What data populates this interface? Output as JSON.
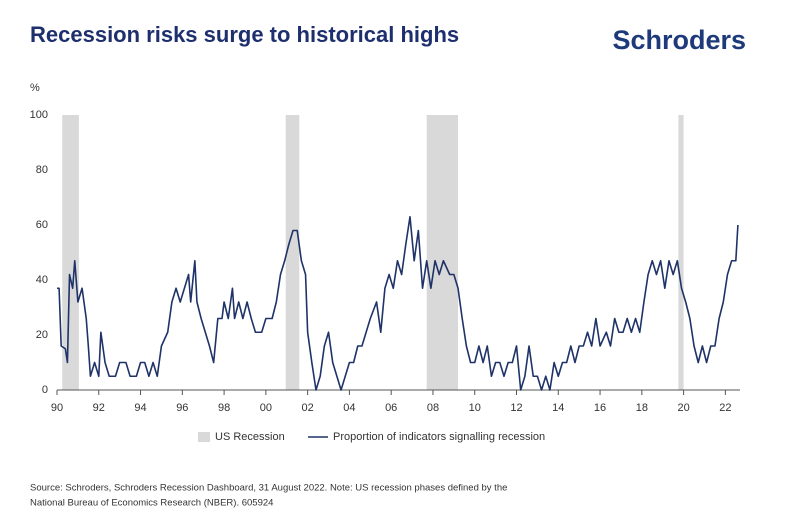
{
  "header": {
    "title": "Recession risks surge to historical highs",
    "brand": "Schroders"
  },
  "chart_data": {
    "type": "line",
    "y_label": "%",
    "x": [
      1990.0,
      1990.1,
      1990.2,
      1990.4,
      1990.5,
      1990.6,
      1990.75,
      1990.85,
      1991.0,
      1991.2,
      1991.4,
      1991.5,
      1991.6,
      1991.8,
      1992.0,
      1992.1,
      1992.3,
      1992.5,
      1992.8,
      1993.0,
      1993.3,
      1993.5,
      1993.8,
      1994.0,
      1994.2,
      1994.4,
      1994.6,
      1994.8,
      1995.0,
      1995.3,
      1995.5,
      1995.7,
      1995.9,
      1996.1,
      1996.3,
      1996.4,
      1996.6,
      1996.7,
      1996.9,
      1997.1,
      1997.3,
      1997.5,
      1997.7,
      1997.9,
      1998.0,
      1998.2,
      1998.4,
      1998.5,
      1998.7,
      1998.9,
      1999.1,
      1999.3,
      1999.5,
      1999.8,
      2000.0,
      2000.3,
      2000.5,
      2000.7,
      2000.9,
      2001.1,
      2001.3,
      2001.5,
      2001.7,
      2001.9,
      2002.0,
      2002.2,
      2002.4,
      2002.6,
      2002.8,
      2003.0,
      2003.2,
      2003.4,
      2003.6,
      2003.8,
      2004.0,
      2004.2,
      2004.4,
      2004.6,
      2004.8,
      2005.0,
      2005.3,
      2005.5,
      2005.7,
      2005.9,
      2006.1,
      2006.3,
      2006.5,
      2006.7,
      2006.9,
      2007.1,
      2007.3,
      2007.5,
      2007.7,
      2007.9,
      2008.1,
      2008.3,
      2008.5,
      2008.8,
      2009.0,
      2009.2,
      2009.4,
      2009.6,
      2009.8,
      2010.0,
      2010.2,
      2010.4,
      2010.6,
      2010.8,
      2011.0,
      2011.2,
      2011.4,
      2011.6,
      2011.8,
      2012.0,
      2012.2,
      2012.4,
      2012.6,
      2012.8,
      2013.0,
      2013.2,
      2013.4,
      2013.6,
      2013.8,
      2014.0,
      2014.2,
      2014.4,
      2014.6,
      2014.8,
      2015.0,
      2015.2,
      2015.4,
      2015.6,
      2015.8,
      2016.0,
      2016.3,
      2016.5,
      2016.7,
      2016.9,
      2017.1,
      2017.3,
      2017.5,
      2017.7,
      2017.9,
      2018.1,
      2018.3,
      2018.5,
      2018.7,
      2018.9,
      2019.1,
      2019.3,
      2019.5,
      2019.7,
      2019.9,
      2020.1,
      2020.3,
      2020.5,
      2020.7,
      2020.9,
      2021.1,
      2021.3,
      2021.5,
      2021.7,
      2021.9,
      2022.1,
      2022.3,
      2022.5,
      2022.6
    ],
    "series": [
      {
        "name": "Proportion of indicators signalling recession",
        "color": "#1f3368",
        "values": [
          37,
          37,
          16,
          15,
          10,
          42,
          37,
          47,
          32,
          37,
          26,
          16,
          5,
          10,
          5,
          21,
          10,
          5,
          5,
          10,
          10,
          5,
          5,
          10,
          10,
          5,
          10,
          5,
          16,
          21,
          32,
          37,
          32,
          37,
          42,
          32,
          47,
          32,
          26,
          21,
          16,
          10,
          26,
          26,
          32,
          26,
          37,
          26,
          32,
          26,
          32,
          26,
          21,
          21,
          26,
          26,
          32,
          42,
          47,
          53,
          58,
          58,
          47,
          42,
          21,
          10,
          0,
          5,
          16,
          21,
          10,
          5,
          0,
          5,
          10,
          10,
          16,
          16,
          21,
          26,
          32,
          21,
          37,
          42,
          37,
          47,
          42,
          53,
          63,
          47,
          58,
          37,
          47,
          37,
          47,
          42,
          47,
          42,
          42,
          37,
          26,
          16,
          10,
          10,
          16,
          10,
          16,
          5,
          10,
          10,
          5,
          10,
          10,
          16,
          0,
          5,
          16,
          5,
          5,
          0,
          5,
          0,
          10,
          5,
          10,
          10,
          16,
          10,
          16,
          16,
          21,
          16,
          26,
          16,
          21,
          16,
          26,
          21,
          21,
          26,
          21,
          26,
          21,
          32,
          42,
          47,
          42,
          47,
          37,
          47,
          42,
          47,
          37,
          32,
          26,
          16,
          10,
          16,
          10,
          16,
          16,
          26,
          32,
          42,
          47,
          47,
          60
        ]
      }
    ],
    "recessions": {
      "name": "US Recession",
      "color": "#d9d9d9",
      "periods": [
        [
          1990.25,
          1991.05
        ],
        [
          2000.95,
          2001.6
        ],
        [
          2007.7,
          2009.2
        ],
        [
          2019.75,
          2020.0
        ]
      ]
    },
    "xlim": [
      1990,
      2022.7
    ],
    "ylim": [
      0,
      100
    ],
    "xticks": [
      {
        "value": 1990,
        "label": "90"
      },
      {
        "value": 1992,
        "label": "92"
      },
      {
        "value": 1994,
        "label": "94"
      },
      {
        "value": 1996,
        "label": "96"
      },
      {
        "value": 1998,
        "label": "98"
      },
      {
        "value": 2000,
        "label": "00"
      },
      {
        "value": 2002,
        "label": "02"
      },
      {
        "value": 2004,
        "label": "04"
      },
      {
        "value": 2006,
        "label": "06"
      },
      {
        "value": 2008,
        "label": "08"
      },
      {
        "value": 2010,
        "label": "10"
      },
      {
        "value": 2012,
        "label": "12"
      },
      {
        "value": 2014,
        "label": "14"
      },
      {
        "value": 2016,
        "label": "16"
      },
      {
        "value": 2018,
        "label": "18"
      },
      {
        "value": 2020,
        "label": "20"
      },
      {
        "value": 2022,
        "label": "22"
      }
    ],
    "yticks": [
      0,
      20,
      40,
      60,
      80,
      100
    ],
    "grid": false
  },
  "footer": {
    "source_lines": [
      "Source: Schroders, Schroders Recession Dashboard, 31 August 2022. Note: US recession phases defined by the",
      "National Bureau of Economics Research (NBER). 605924"
    ]
  }
}
